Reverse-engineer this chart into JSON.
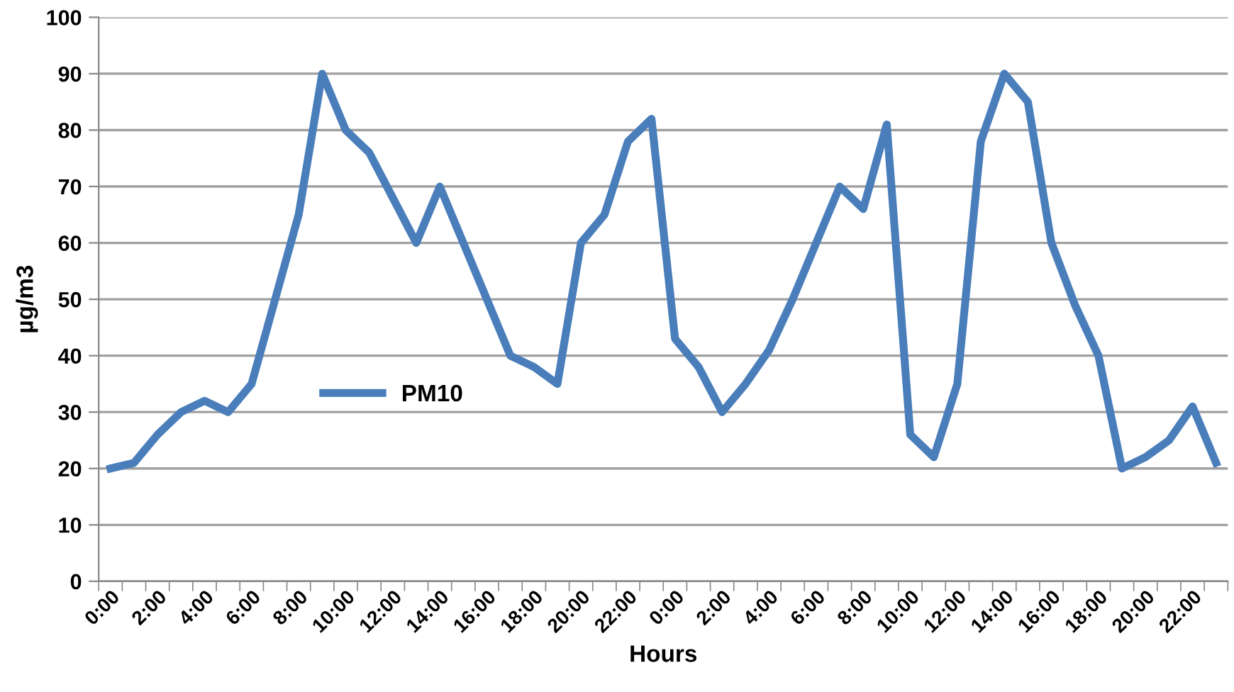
{
  "chart_data": {
    "type": "line",
    "xlabel": "Hours",
    "ylabel": "µg/m3",
    "categories": [
      "0:00",
      null,
      "2:00",
      null,
      "4:00",
      null,
      "6:00",
      null,
      "8:00",
      null,
      "10:00",
      null,
      "12:00",
      null,
      "14:00",
      null,
      "16:00",
      null,
      "18:00",
      null,
      "20:00",
      null,
      "22:00",
      null,
      "0:00",
      null,
      "2:00",
      null,
      "4:00",
      null,
      "6:00",
      null,
      "8:00",
      null,
      "10:00",
      null,
      "12:00",
      null,
      "14:00",
      null,
      "16:00",
      null,
      "18:00",
      null,
      "20:00",
      null,
      "22:00",
      null
    ],
    "series": [
      {
        "name": "PM10",
        "color": "#4a7ebb",
        "values": [
          20,
          21,
          26,
          30,
          32,
          30,
          35,
          50,
          65,
          90,
          80,
          76,
          68,
          60,
          70,
          60,
          50,
          40,
          38,
          35,
          60,
          65,
          78,
          82,
          43,
          38,
          30,
          35,
          41,
          50,
          60,
          70,
          66,
          81,
          26,
          22,
          35,
          78,
          90,
          85,
          60,
          49,
          40,
          20,
          22,
          25,
          31,
          21
        ]
      }
    ],
    "ylim": [
      0,
      100
    ],
    "yticks": [
      0,
      10,
      20,
      30,
      40,
      50,
      60,
      70,
      80,
      90,
      100
    ],
    "grid": "y",
    "legend": "center left",
    "marker": "none",
    "line_style": "solid"
  }
}
